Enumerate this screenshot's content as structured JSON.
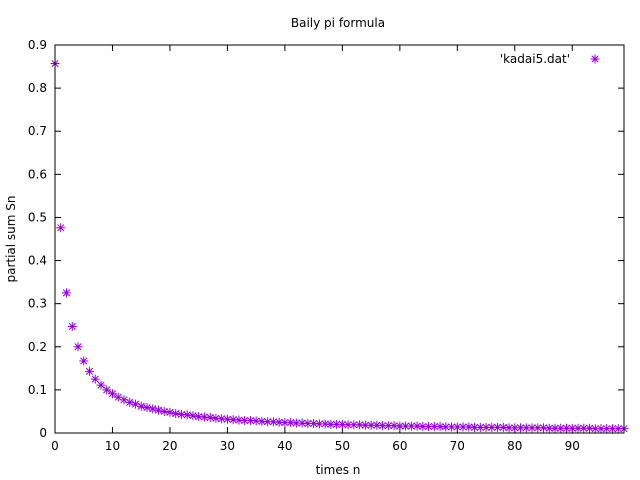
{
  "chart_data": {
    "type": "scatter",
    "title": "Baily pi formula",
    "xlabel": "times n",
    "ylabel": "partial sum Sn",
    "xlim": [
      0,
      99
    ],
    "ylim": [
      0,
      0.9
    ],
    "xticks": [
      0,
      10,
      20,
      30,
      40,
      50,
      60,
      70,
      80,
      90
    ],
    "yticks": [
      0,
      0.1,
      0.2,
      0.3,
      0.4,
      0.5,
      0.6,
      0.7,
      0.8,
      0.9
    ],
    "grid": false,
    "legend_position": "top-right",
    "series": [
      {
        "name": "'kadai5.dat'",
        "color": "#9400d3",
        "marker": "asterisk",
        "x": [
          0,
          1,
          2,
          3,
          4,
          5,
          6,
          7,
          8,
          9,
          10,
          11,
          12,
          13,
          14,
          15,
          16,
          17,
          18,
          19,
          20,
          21,
          22,
          23,
          24,
          25,
          26,
          27,
          28,
          29,
          30,
          31,
          32,
          33,
          34,
          35,
          36,
          37,
          38,
          39,
          40,
          41,
          42,
          43,
          44,
          45,
          46,
          47,
          48,
          49,
          50,
          51,
          52,
          53,
          54,
          55,
          56,
          57,
          58,
          59,
          60,
          61,
          62,
          63,
          64,
          65,
          66,
          67,
          68,
          69,
          70,
          71,
          72,
          73,
          74,
          75,
          76,
          77,
          78,
          79,
          80,
          81,
          82,
          83,
          84,
          85,
          86,
          87,
          88,
          89,
          90,
          91,
          92,
          93,
          94,
          95,
          96,
          97,
          98,
          99
        ],
        "y": [
          0.857,
          0.476,
          0.325,
          0.247,
          0.2,
          0.167,
          0.143,
          0.125,
          0.111,
          0.1,
          0.091,
          0.083,
          0.077,
          0.071,
          0.067,
          0.062,
          0.059,
          0.056,
          0.053,
          0.05,
          0.048,
          0.045,
          0.043,
          0.042,
          0.04,
          0.038,
          0.037,
          0.036,
          0.034,
          0.033,
          0.032,
          0.031,
          0.03,
          0.029,
          0.029,
          0.028,
          0.027,
          0.026,
          0.026,
          0.025,
          0.024,
          0.024,
          0.023,
          0.023,
          0.022,
          0.022,
          0.021,
          0.021,
          0.02,
          0.02,
          0.02,
          0.019,
          0.019,
          0.019,
          0.018,
          0.018,
          0.018,
          0.017,
          0.017,
          0.017,
          0.016,
          0.016,
          0.016,
          0.016,
          0.015,
          0.015,
          0.015,
          0.015,
          0.014,
          0.014,
          0.014,
          0.014,
          0.014,
          0.013,
          0.013,
          0.013,
          0.013,
          0.013,
          0.013,
          0.012,
          0.012,
          0.012,
          0.012,
          0.012,
          0.012,
          0.012,
          0.011,
          0.011,
          0.011,
          0.011,
          0.011,
          0.011,
          0.011,
          0.011,
          0.01,
          0.01,
          0.01,
          0.01,
          0.01,
          0.01
        ]
      }
    ]
  }
}
